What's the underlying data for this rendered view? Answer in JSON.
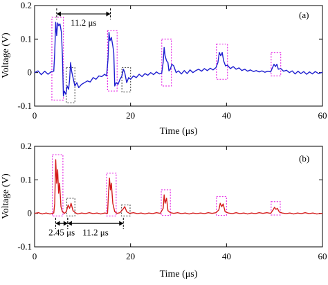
{
  "chart_data": [
    {
      "type": "line",
      "panel_label": "(a)",
      "xlabel": "Time (μs)",
      "ylabel": "Voltage (V)",
      "xlim": [
        0,
        60
      ],
      "ylim": [
        -0.1,
        0.2
      ],
      "x_ticks": [
        "0",
        "20",
        "40",
        "60"
      ],
      "y_ticks": [
        "-0.1",
        "0",
        "0.1",
        "0.2"
      ],
      "line_color": "#1f1fd0",
      "series": [
        {
          "points": [
            [
              0,
              0.0
            ],
            [
              0.7,
              0.005
            ],
            [
              1.4,
              -0.006
            ],
            [
              2.1,
              0.004
            ],
            [
              2.8,
              -0.005
            ],
            [
              3.5,
              0.003
            ],
            [
              4.0,
              0.004
            ],
            [
              4.2,
              0.06
            ],
            [
              4.4,
              0.15
            ],
            [
              4.6,
              0.11
            ],
            [
              4.8,
              0.148
            ],
            [
              5.0,
              0.14
            ],
            [
              5.3,
              0.145
            ],
            [
              5.6,
              0.12
            ],
            [
              5.8,
              0.05
            ],
            [
              6.0,
              -0.07
            ],
            [
              6.2,
              -0.055
            ],
            [
              6.5,
              -0.065
            ],
            [
              6.8,
              -0.04
            ],
            [
              7.1,
              -0.05
            ],
            [
              7.3,
              -0.02
            ],
            [
              7.5,
              0.03
            ],
            [
              7.7,
              0.005
            ],
            [
              8.0,
              -0.015
            ],
            [
              8.4,
              -0.04
            ],
            [
              8.8,
              -0.03
            ],
            [
              9.2,
              -0.045
            ],
            [
              9.8,
              -0.035
            ],
            [
              10.4,
              -0.03
            ],
            [
              11.0,
              -0.025
            ],
            [
              11.6,
              -0.028
            ],
            [
              12.2,
              -0.015
            ],
            [
              12.8,
              -0.02
            ],
            [
              13.4,
              -0.01
            ],
            [
              14.0,
              -0.012
            ],
            [
              14.6,
              -0.005
            ],
            [
              15.0,
              -0.01
            ],
            [
              15.3,
              0.04
            ],
            [
              15.5,
              0.12
            ],
            [
              15.7,
              0.095
            ],
            [
              16.0,
              0.105
            ],
            [
              16.3,
              0.08
            ],
            [
              16.5,
              0.06
            ],
            [
              16.7,
              -0.04
            ],
            [
              17.0,
              -0.03
            ],
            [
              17.4,
              -0.035
            ],
            [
              17.8,
              -0.02
            ],
            [
              18.2,
              -0.01
            ],
            [
              18.5,
              0.01
            ],
            [
              18.8,
              0.0
            ],
            [
              19.2,
              -0.03
            ],
            [
              19.6,
              -0.015
            ],
            [
              20.0,
              -0.02
            ],
            [
              20.6,
              -0.01
            ],
            [
              21.2,
              -0.015
            ],
            [
              21.8,
              -0.005
            ],
            [
              22.4,
              -0.012
            ],
            [
              23.0,
              -0.003
            ],
            [
              23.6,
              -0.008
            ],
            [
              24.2,
              0.0
            ],
            [
              24.8,
              -0.006
            ],
            [
              25.4,
              0.002
            ],
            [
              26.0,
              -0.004
            ],
            [
              26.5,
              -0.002
            ],
            [
              26.8,
              0.03
            ],
            [
              27.0,
              0.075
            ],
            [
              27.2,
              0.05
            ],
            [
              27.5,
              0.035
            ],
            [
              27.8,
              0.03
            ],
            [
              28.0,
              0.005
            ],
            [
              28.3,
              0.01
            ],
            [
              28.6,
              0.025
            ],
            [
              29.0,
              0.02
            ],
            [
              29.5,
              0.0
            ],
            [
              30.0,
              0.005
            ],
            [
              30.6,
              -0.004
            ],
            [
              31.2,
              0.006
            ],
            [
              31.8,
              -0.003
            ],
            [
              32.4,
              0.008
            ],
            [
              33.0,
              0.0
            ],
            [
              33.6,
              0.006
            ],
            [
              34.2,
              0.01
            ],
            [
              34.8,
              0.004
            ],
            [
              35.4,
              0.012
            ],
            [
              36.0,
              0.006
            ],
            [
              36.6,
              0.013
            ],
            [
              37.2,
              0.008
            ],
            [
              37.8,
              0.015
            ],
            [
              38.2,
              0.03
            ],
            [
              38.5,
              0.06
            ],
            [
              38.8,
              0.05
            ],
            [
              39.1,
              0.06
            ],
            [
              39.4,
              0.035
            ],
            [
              39.8,
              0.02
            ],
            [
              40.2,
              0.022
            ],
            [
              40.8,
              0.012
            ],
            [
              41.4,
              0.018
            ],
            [
              42.0,
              0.01
            ],
            [
              42.6,
              0.014
            ],
            [
              43.2,
              0.006
            ],
            [
              43.8,
              0.01
            ],
            [
              44.4,
              0.004
            ],
            [
              45.0,
              0.008
            ],
            [
              45.6,
              0.003
            ],
            [
              46.2,
              0.006
            ],
            [
              46.8,
              0.002
            ],
            [
              47.4,
              0.005
            ],
            [
              48.0,
              0.001
            ],
            [
              48.6,
              0.004
            ],
            [
              49.2,
              0.002
            ],
            [
              49.6,
              0.015
            ],
            [
              49.9,
              0.025
            ],
            [
              50.2,
              0.018
            ],
            [
              50.5,
              0.025
            ],
            [
              50.8,
              0.01
            ],
            [
              51.3,
              0.012
            ],
            [
              51.9,
              0.004
            ],
            [
              52.5,
              0.007
            ],
            [
              53.1,
              0.0
            ],
            [
              53.7,
              0.005
            ],
            [
              54.3,
              -0.004
            ],
            [
              54.9,
              0.004
            ],
            [
              55.5,
              -0.003
            ],
            [
              56.1,
              0.003
            ],
            [
              56.7,
              -0.005
            ],
            [
              57.3,
              0.002
            ],
            [
              57.9,
              -0.004
            ],
            [
              58.5,
              0.003
            ],
            [
              59.2,
              -0.003
            ],
            [
              60.0,
              0.001
            ]
          ]
        }
      ],
      "pink_boxes": [
        [
          3.6,
          6.0,
          -0.082,
          0.165
        ],
        [
          15.2,
          17.2,
          -0.055,
          0.125
        ],
        [
          26.5,
          28.5,
          -0.04,
          0.1
        ],
        [
          37.9,
          40.2,
          -0.02,
          0.085
        ],
        [
          49.3,
          51.3,
          -0.01,
          0.06
        ]
      ],
      "gray_boxes": [
        [
          6.6,
          8.4,
          -0.09,
          0.015
        ],
        [
          18.2,
          20.0,
          -0.058,
          0.015
        ]
      ],
      "annotations": [
        {
          "text": "11.2 μs",
          "type": "span",
          "x1": 4.6,
          "x2": 15.8,
          "y": 0.175,
          "label_y": 0.148
        }
      ]
    },
    {
      "type": "line",
      "panel_label": "(b)",
      "xlabel": "Time (μs)",
      "ylabel": "Voltage (V)",
      "xlim": [
        0,
        60
      ],
      "ylim": [
        -0.1,
        0.2
      ],
      "x_ticks": [
        "0",
        "20",
        "40",
        "60"
      ],
      "y_ticks": [
        "-0.1",
        "0",
        "0.1",
        "0.2"
      ],
      "line_color": "#d41c1c",
      "series": [
        {
          "points": [
            [
              0,
              0.0
            ],
            [
              0.8,
              0.002
            ],
            [
              1.6,
              -0.002
            ],
            [
              2.4,
              0.001
            ],
            [
              3.2,
              -0.002
            ],
            [
              4.0,
              0.001
            ],
            [
              4.2,
              0.03
            ],
            [
              4.4,
              0.16
            ],
            [
              4.6,
              0.09
            ],
            [
              4.8,
              0.13
            ],
            [
              5.0,
              0.06
            ],
            [
              5.2,
              0.09
            ],
            [
              5.5,
              0.02
            ],
            [
              5.8,
              0.005
            ],
            [
              6.2,
              0.0
            ],
            [
              6.6,
              0.005
            ],
            [
              7.0,
              0.025
            ],
            [
              7.3,
              0.015
            ],
            [
              7.6,
              0.03
            ],
            [
              8.0,
              0.008
            ],
            [
              8.5,
              0.002
            ],
            [
              9.0,
              -0.002
            ],
            [
              9.8,
              0.001
            ],
            [
              10.6,
              -0.001
            ],
            [
              11.4,
              0.002
            ],
            [
              12.2,
              -0.001
            ],
            [
              13.0,
              0.001
            ],
            [
              13.8,
              -0.002
            ],
            [
              14.6,
              0.001
            ],
            [
              15.2,
              0.0
            ],
            [
              15.4,
              0.06
            ],
            [
              15.6,
              0.105
            ],
            [
              15.8,
              0.07
            ],
            [
              16.0,
              0.09
            ],
            [
              16.3,
              0.03
            ],
            [
              16.7,
              0.005
            ],
            [
              17.2,
              0.0
            ],
            [
              17.8,
              0.002
            ],
            [
              18.4,
              0.012
            ],
            [
              18.8,
              0.02
            ],
            [
              19.2,
              0.005
            ],
            [
              19.8,
              0.0
            ],
            [
              20.6,
              0.002
            ],
            [
              21.4,
              -0.001
            ],
            [
              22.2,
              0.001
            ],
            [
              23.0,
              -0.002
            ],
            [
              23.8,
              0.001
            ],
            [
              24.6,
              -0.001
            ],
            [
              25.4,
              0.002
            ],
            [
              26.2,
              0.0
            ],
            [
              26.8,
              0.015
            ],
            [
              27.0,
              0.055
            ],
            [
              27.2,
              0.03
            ],
            [
              27.5,
              0.045
            ],
            [
              27.8,
              0.008
            ],
            [
              28.3,
              0.002
            ],
            [
              29.0,
              0.0
            ],
            [
              29.8,
              0.002
            ],
            [
              30.6,
              -0.001
            ],
            [
              31.4,
              0.001
            ],
            [
              32.2,
              -0.002
            ],
            [
              33.0,
              0.001
            ],
            [
              33.8,
              -0.001
            ],
            [
              34.6,
              0.001
            ],
            [
              35.4,
              -0.001
            ],
            [
              36.2,
              0.002
            ],
            [
              37.0,
              0.0
            ],
            [
              37.8,
              0.002
            ],
            [
              38.4,
              0.01
            ],
            [
              38.7,
              0.03
            ],
            [
              39.0,
              0.02
            ],
            [
              39.3,
              0.028
            ],
            [
              39.7,
              0.005
            ],
            [
              40.4,
              0.001
            ],
            [
              41.2,
              -0.001
            ],
            [
              42.0,
              0.002
            ],
            [
              42.8,
              -0.001
            ],
            [
              43.6,
              0.001
            ],
            [
              44.4,
              -0.002
            ],
            [
              45.2,
              0.001
            ],
            [
              46.0,
              -0.001
            ],
            [
              46.8,
              0.002
            ],
            [
              47.6,
              0.0
            ],
            [
              48.4,
              0.002
            ],
            [
              49.2,
              0.0
            ],
            [
              49.7,
              0.01
            ],
            [
              50.0,
              0.018
            ],
            [
              50.3,
              0.012
            ],
            [
              50.6,
              0.015
            ],
            [
              51.0,
              0.004
            ],
            [
              51.6,
              0.001
            ],
            [
              52.4,
              -0.001
            ],
            [
              53.2,
              0.001
            ],
            [
              54.0,
              -0.002
            ],
            [
              54.8,
              0.001
            ],
            [
              55.6,
              -0.001
            ],
            [
              56.4,
              0.002
            ],
            [
              57.2,
              -0.001
            ],
            [
              58.0,
              0.001
            ],
            [
              58.8,
              -0.002
            ],
            [
              60.0,
              0.0
            ]
          ]
        }
      ],
      "pink_boxes": [
        [
          3.7,
          5.9,
          -0.008,
          0.175
        ],
        [
          15.0,
          17.0,
          -0.008,
          0.12
        ],
        [
          26.4,
          28.3,
          -0.006,
          0.07
        ],
        [
          37.9,
          40.0,
          -0.006,
          0.05
        ],
        [
          49.3,
          51.2,
          -0.005,
          0.035
        ]
      ],
      "gray_boxes": [
        [
          6.7,
          8.4,
          -0.008,
          0.045
        ],
        [
          18.1,
          19.9,
          -0.008,
          0.025
        ]
      ],
      "annotations": [
        {
          "text": "2.45 μs",
          "type": "span",
          "x1": 4.4,
          "x2": 6.9,
          "y": -0.03,
          "label_y": -0.058
        },
        {
          "text": "11.2 μs",
          "type": "span",
          "x1": 6.9,
          "x2": 18.5,
          "y": -0.03,
          "label_y": -0.058
        }
      ]
    }
  ],
  "colors": {
    "pink_box": "#e632e6",
    "gray_box": "#555555"
  }
}
